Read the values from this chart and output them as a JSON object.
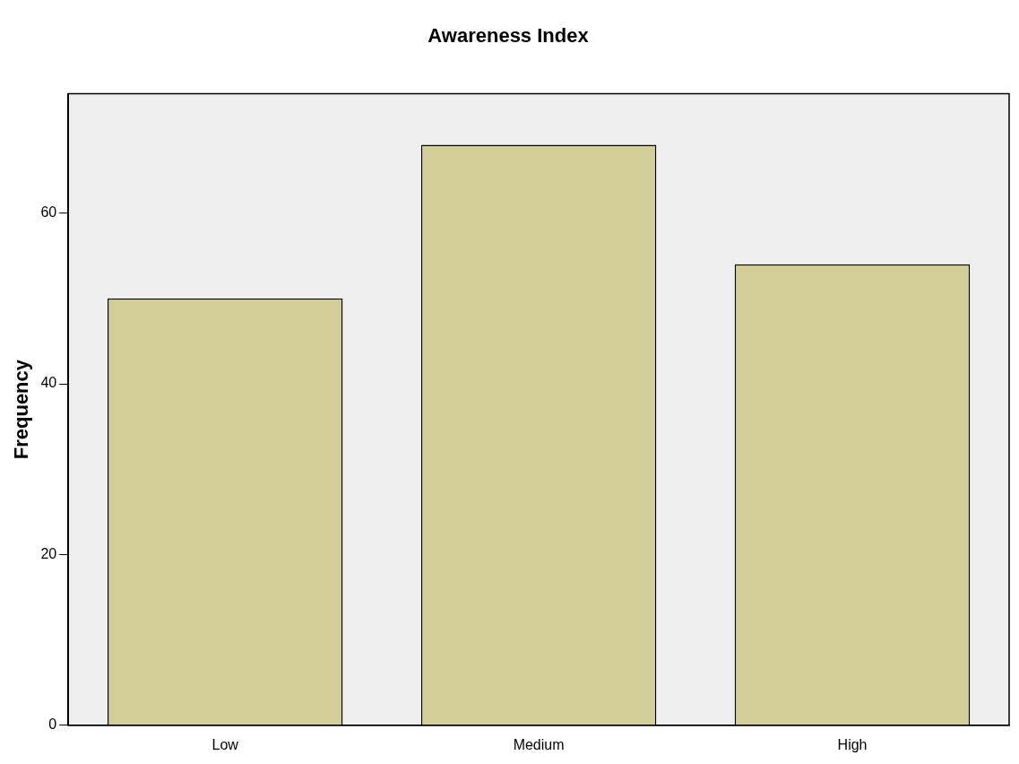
{
  "chart_data": {
    "type": "bar",
    "title": "Awareness Index",
    "ylabel": "Frequency",
    "categories": [
      "Low",
      "Medium",
      "High"
    ],
    "values": [
      50,
      68,
      54
    ],
    "color": "#d3ce97",
    "ylim": [
      0,
      74
    ],
    "yticks": [
      0,
      20,
      40,
      60
    ],
    "grid": false,
    "legend": false
  }
}
